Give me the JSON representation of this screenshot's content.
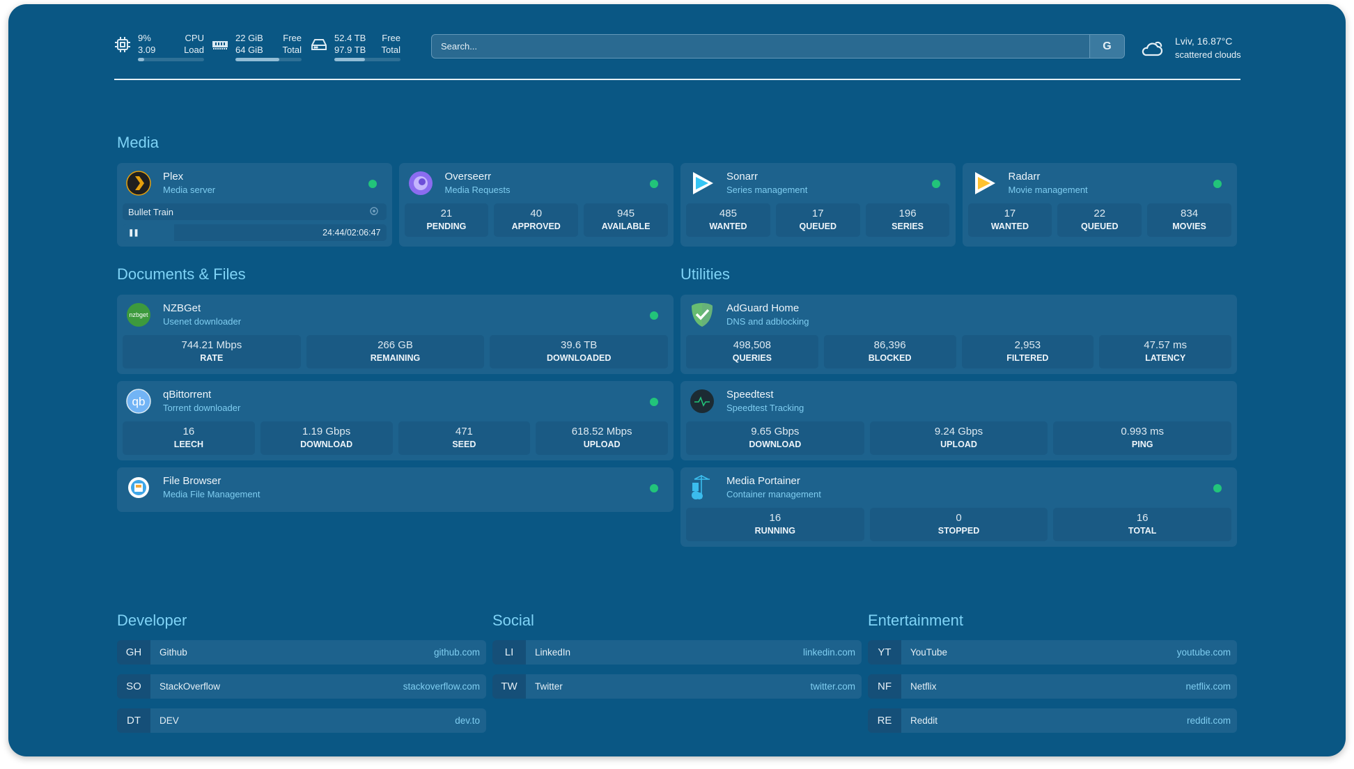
{
  "header": {
    "cpu": {
      "icon": "cpu-icon",
      "value": "9%",
      "load": "3.09",
      "label1": "CPU",
      "label2": "Load",
      "usage_percent": 9
    },
    "memory": {
      "icon": "memory-icon",
      "free": "22 GiB",
      "total": "64 GiB",
      "label1": "Free",
      "label2": "Total",
      "used_percent": 66
    },
    "disk": {
      "icon": "hard-drive-icon",
      "free": "52.4 TB",
      "total": "97.9 TB",
      "label1": "Free",
      "label2": "Total",
      "used_percent": 46
    },
    "search": {
      "placeholder": "Search...",
      "button": "G"
    },
    "weather": {
      "icon": "cloud-sun-icon",
      "location_temp": "Lviv, 16.87°C",
      "condition": "scattered clouds"
    }
  },
  "colors": {
    "background": "#0a5784",
    "card": "#1d628d",
    "heading": "#7fd3f6",
    "status_online": "#22c47a"
  },
  "media": {
    "title": "Media",
    "cards": [
      {
        "name": "Plex",
        "desc": "Media server",
        "icon": "plex",
        "status": "online",
        "now_playing": {
          "title": "Bullet Train",
          "position": "24:44",
          "separator": "/",
          "duration": "02:06:47",
          "progress_percent": 19.5
        }
      },
      {
        "name": "Overseerr",
        "desc": "Media Requests",
        "icon": "overseerr",
        "status": "online",
        "stats": [
          {
            "value": "21",
            "label": "PENDING"
          },
          {
            "value": "40",
            "label": "APPROVED"
          },
          {
            "value": "945",
            "label": "AVAILABLE"
          }
        ]
      },
      {
        "name": "Sonarr",
        "desc": "Series management",
        "icon": "sonarr",
        "status": "online",
        "stats": [
          {
            "value": "485",
            "label": "WANTED"
          },
          {
            "value": "17",
            "label": "QUEUED"
          },
          {
            "value": "196",
            "label": "SERIES"
          }
        ]
      },
      {
        "name": "Radarr",
        "desc": "Movie management",
        "icon": "radarr",
        "status": "online",
        "stats": [
          {
            "value": "17",
            "label": "WANTED"
          },
          {
            "value": "22",
            "label": "QUEUED"
          },
          {
            "value": "834",
            "label": "MOVIES"
          }
        ]
      }
    ]
  },
  "documents": {
    "title": "Documents & Files",
    "cards": [
      {
        "name": "NZBGet",
        "desc": "Usenet downloader",
        "icon": "nzbget",
        "status": "online",
        "stats": [
          {
            "value": "744.21 Mbps",
            "label": "RATE"
          },
          {
            "value": "266 GB",
            "label": "REMAINING"
          },
          {
            "value": "39.6 TB",
            "label": "DOWNLOADED"
          }
        ]
      },
      {
        "name": "qBittorrent",
        "desc": "Torrent downloader",
        "icon": "qbittorrent",
        "status": "online",
        "stats": [
          {
            "value": "16",
            "label": "LEECH"
          },
          {
            "value": "1.19 Gbps",
            "label": "DOWNLOAD"
          },
          {
            "value": "471",
            "label": "SEED"
          },
          {
            "value": "618.52 Mbps",
            "label": "UPLOAD"
          }
        ]
      },
      {
        "name": "File Browser",
        "desc": "Media File Management",
        "icon": "filebrowser",
        "status": "online"
      }
    ]
  },
  "utilities": {
    "title": "Utilities",
    "cards": [
      {
        "name": "AdGuard Home",
        "desc": "DNS and adblocking",
        "icon": "adguard",
        "stats": [
          {
            "value": "498,508",
            "label": "QUERIES"
          },
          {
            "value": "86,396",
            "label": "BLOCKED"
          },
          {
            "value": "2,953",
            "label": "FILTERED"
          },
          {
            "value": "47.57 ms",
            "label": "LATENCY"
          }
        ]
      },
      {
        "name": "Speedtest",
        "desc": "Speedtest Tracking",
        "icon": "speedtest",
        "stats": [
          {
            "value": "9.65 Gbps",
            "label": "DOWNLOAD"
          },
          {
            "value": "9.24 Gbps",
            "label": "UPLOAD"
          },
          {
            "value": "0.993 ms",
            "label": "PING"
          }
        ]
      },
      {
        "name": "Media Portainer",
        "desc": "Container management",
        "icon": "portainer",
        "status": "online",
        "stats": [
          {
            "value": "16",
            "label": "RUNNING"
          },
          {
            "value": "0",
            "label": "STOPPED"
          },
          {
            "value": "16",
            "label": "TOTAL"
          }
        ]
      }
    ]
  },
  "bookmarks": [
    {
      "title": "Developer",
      "items": [
        {
          "abbr": "GH",
          "name": "Github",
          "url": "github.com"
        },
        {
          "abbr": "SO",
          "name": "StackOverflow",
          "url": "stackoverflow.com"
        },
        {
          "abbr": "DT",
          "name": "DEV",
          "url": "dev.to"
        }
      ]
    },
    {
      "title": "Social",
      "items": [
        {
          "abbr": "LI",
          "name": "LinkedIn",
          "url": "linkedin.com"
        },
        {
          "abbr": "TW",
          "name": "Twitter",
          "url": "twitter.com"
        }
      ]
    },
    {
      "title": "Entertainment",
      "items": [
        {
          "abbr": "YT",
          "name": "YouTube",
          "url": "youtube.com"
        },
        {
          "abbr": "NF",
          "name": "Netflix",
          "url": "netflix.com"
        },
        {
          "abbr": "RE",
          "name": "Reddit",
          "url": "reddit.com"
        }
      ]
    }
  ]
}
